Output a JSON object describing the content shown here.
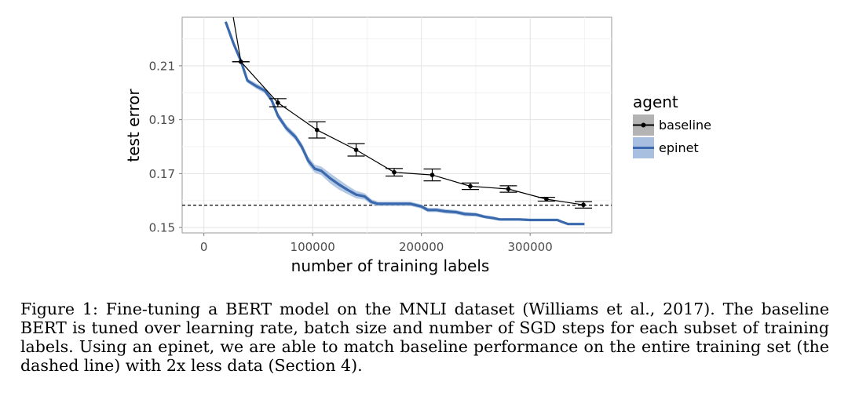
{
  "chart_data": {
    "type": "line",
    "title": "",
    "xlabel": "number of training labels",
    "ylabel": "test error",
    "xlim": [
      -20000,
      375000
    ],
    "ylim": [
      0.148,
      0.228
    ],
    "x_ticks": [
      0,
      100000,
      200000,
      300000
    ],
    "x_tick_labels": [
      "0",
      "100000",
      "200000",
      "300000"
    ],
    "y_ticks": [
      0.15,
      0.17,
      0.19,
      0.21
    ],
    "y_tick_labels": [
      "0.15",
      "0.17",
      "0.19",
      "0.21"
    ],
    "grid": true,
    "legend": {
      "title": "agent",
      "placement": "right"
    },
    "reference_line": {
      "y": 0.1583,
      "style": "dashed",
      "color": "#000000"
    },
    "series": [
      {
        "name": "baseline",
        "color": "#000000",
        "band_color": "#999999",
        "markers": true,
        "line_points": {
          "x": [
            27000,
            34000,
            68000,
            104000,
            140000,
            175000,
            210000,
            245000,
            280000,
            315000,
            349000
          ],
          "y": [
            0.228,
            0.2115,
            0.1963,
            0.1862,
            0.1788,
            0.1705,
            0.1695,
            0.1653,
            0.1643,
            0.1605,
            0.1584
          ]
        },
        "points": {
          "x": [
            34000,
            68000,
            104000,
            140000,
            175000,
            210000,
            245000,
            280000,
            315000,
            349000
          ],
          "y": [
            0.2115,
            0.1963,
            0.1862,
            0.1788,
            0.1705,
            0.1695,
            0.1653,
            0.1643,
            0.1605,
            0.1584
          ],
          "err_low": [
            0.2115,
            0.1948,
            0.1832,
            0.1765,
            0.1691,
            0.1673,
            0.1641,
            0.1631,
            0.1598,
            0.1572
          ],
          "err_high": [
            0.2115,
            0.1978,
            0.1892,
            0.1811,
            0.1719,
            0.1717,
            0.1665,
            0.1655,
            0.1612,
            0.1596
          ]
        }
      },
      {
        "name": "epinet",
        "color": "#3a6aad",
        "band_color": "#a9bfdf",
        "markers": false,
        "x": [
          20000,
          27000,
          34000,
          40000,
          48000,
          56000,
          62000,
          68000,
          76000,
          84000,
          90000,
          96000,
          102000,
          108000,
          116000,
          124000,
          132000,
          140000,
          148000,
          154000,
          160000,
          170000,
          180000,
          190000,
          200000,
          206000,
          214000,
          222000,
          232000,
          240000,
          250000,
          258000,
          266000,
          272000,
          280000,
          290000,
          300000,
          310000,
          325000,
          330000,
          335000,
          350000
        ],
        "y": [
          0.2263,
          0.2185,
          0.2118,
          0.2045,
          0.2025,
          0.2008,
          0.1975,
          0.1915,
          0.1868,
          0.1837,
          0.18,
          0.1748,
          0.1718,
          0.171,
          0.1683,
          0.166,
          0.164,
          0.1622,
          0.1615,
          0.1595,
          0.1588,
          0.1588,
          0.1588,
          0.1588,
          0.1578,
          0.1565,
          0.1565,
          0.156,
          0.1557,
          0.155,
          0.1548,
          0.154,
          0.1535,
          0.153,
          0.153,
          0.153,
          0.1528,
          0.1528,
          0.1528,
          0.152,
          0.1513,
          0.1513
        ],
        "band_low": [
          0.2255,
          0.2177,
          0.211,
          0.2037,
          0.2015,
          0.1998,
          0.1963,
          0.1903,
          0.1856,
          0.1825,
          0.1786,
          0.1733,
          0.1703,
          0.1694,
          0.1664,
          0.1641,
          0.1624,
          0.1608,
          0.1603,
          0.1585,
          0.158,
          0.158,
          0.158,
          0.158,
          0.157,
          0.1557,
          0.1557,
          0.1552,
          0.1549,
          0.1542,
          0.1541,
          0.1534,
          0.1529,
          0.1525,
          0.1525,
          0.1525,
          0.1524,
          0.1524,
          0.1524,
          0.1516,
          0.151,
          0.151
        ],
        "band_high": [
          0.2271,
          0.2193,
          0.2126,
          0.2053,
          0.2035,
          0.2018,
          0.1987,
          0.1927,
          0.188,
          0.1849,
          0.1814,
          0.1763,
          0.1733,
          0.1726,
          0.1702,
          0.1679,
          0.1656,
          0.1636,
          0.1627,
          0.1605,
          0.1596,
          0.1596,
          0.1596,
          0.1596,
          0.1586,
          0.1573,
          0.1573,
          0.1568,
          0.1565,
          0.1558,
          0.1555,
          0.1546,
          0.1541,
          0.1535,
          0.1535,
          0.1535,
          0.1532,
          0.1532,
          0.1532,
          0.1524,
          0.1516,
          0.1516
        ]
      }
    ]
  },
  "caption": {
    "label": "Figure 1:",
    "text": "Fine-tuning a BERT model on the MNLI dataset (Williams et al., 2017). The baseline BERT is tuned over learning rate, batch size and number of SGD steps for each subset of training labels. Using an epinet, we are able to match baseline performance on the entire training set (the dashed line) with 2x less data (Section 4)."
  }
}
